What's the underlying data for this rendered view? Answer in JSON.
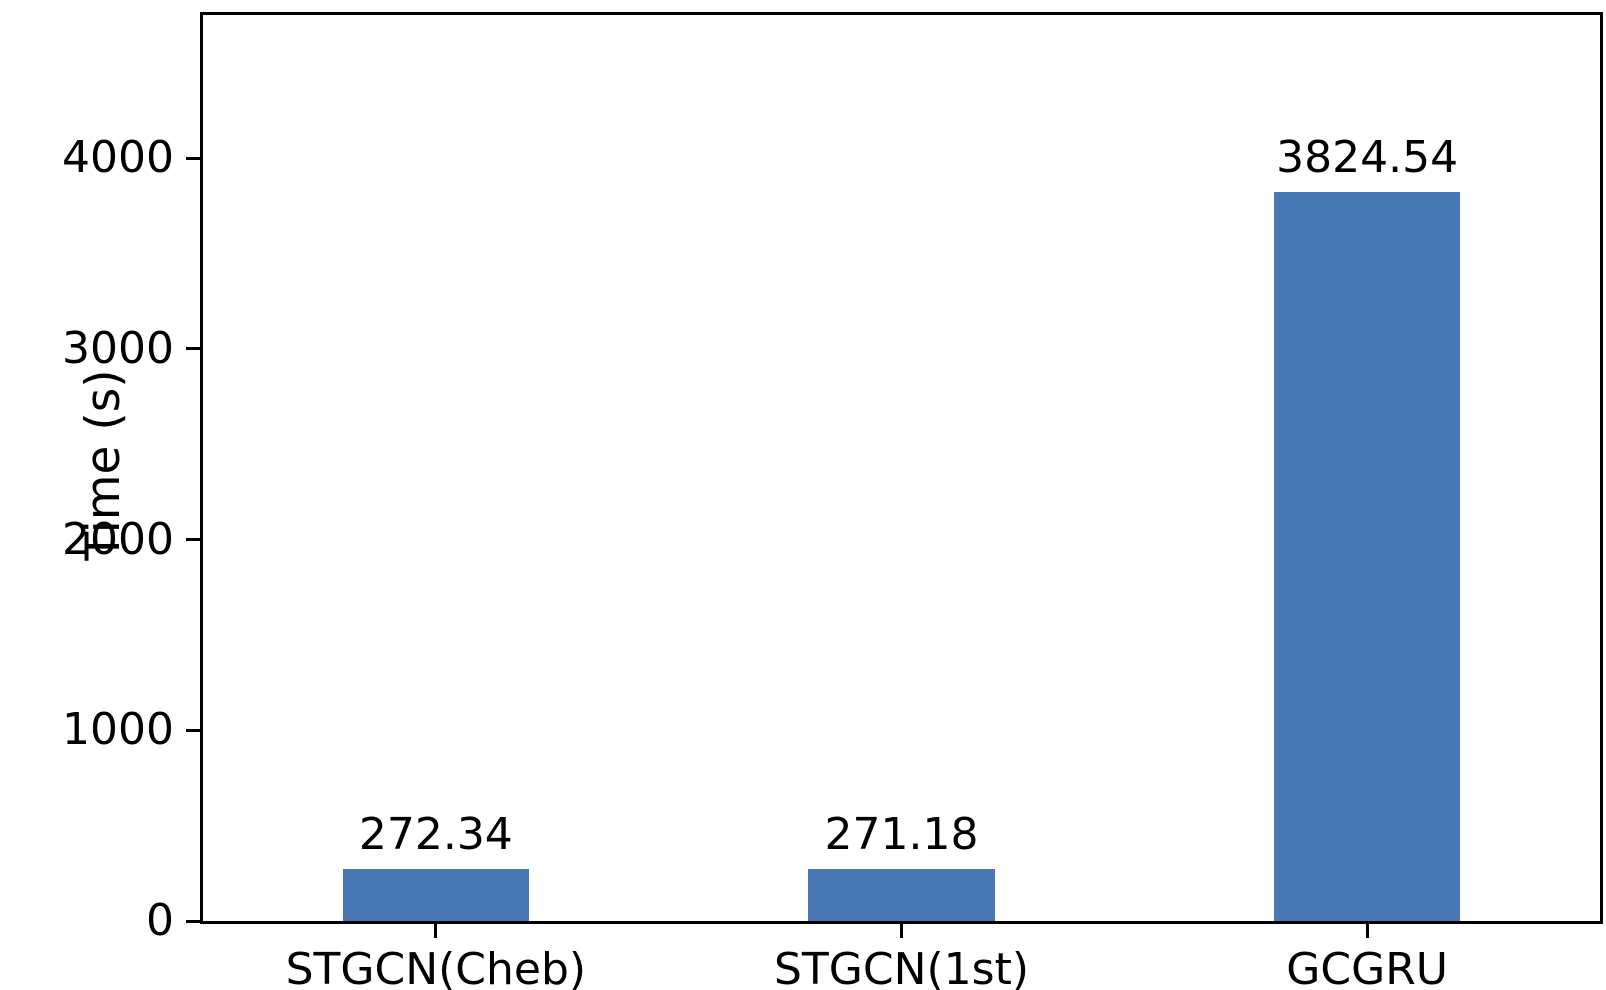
{
  "chart_data": {
    "type": "bar",
    "title": "",
    "xlabel": "",
    "ylabel": "Time (s)",
    "categories": [
      "STGCN(Cheb)",
      "STGCN(1st)",
      "GCGRU"
    ],
    "values": [
      272.34,
      271.18,
      3824.54
    ],
    "value_labels": [
      "272.34",
      "271.18",
      "3824.54"
    ],
    "yticks": [
      0,
      1000,
      2000,
      3000,
      4000
    ],
    "ytick_labels": [
      "0",
      "1000",
      "2000",
      "3000",
      "4000"
    ],
    "ylim": [
      0,
      4750
    ],
    "bar_color": "#4878b4",
    "bar_width_fraction": 0.4,
    "grid": false,
    "legend": null,
    "spines": "full-box"
  }
}
